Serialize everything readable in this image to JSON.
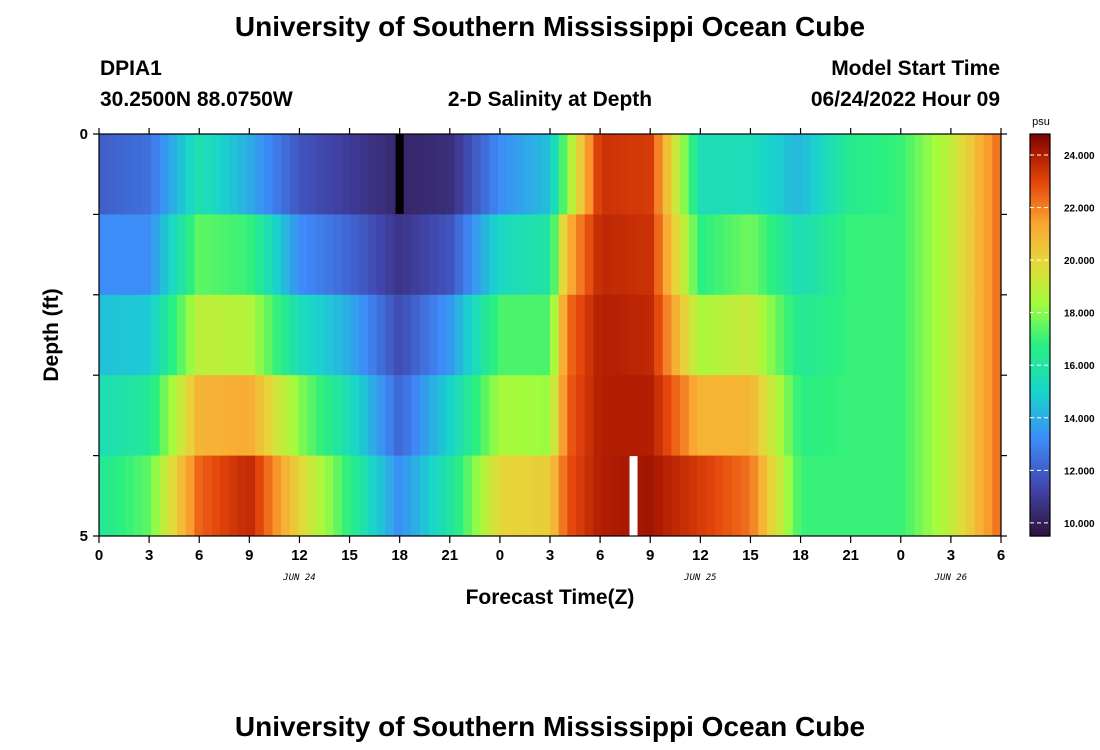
{
  "header": {
    "title": "University of Southern Mississippi Ocean Cube",
    "station_id": "DPIA1",
    "station_coords": "30.2500N  88.0750W",
    "plot_title": "2-D Salinity at Depth",
    "start_label": "Model Start Time",
    "start_value": "06/24/2022 Hour 09"
  },
  "footer": {
    "title": "University of Southern Mississippi Ocean Cube"
  },
  "chart_data": {
    "type": "heatmap",
    "title": "2-D Salinity at Depth",
    "xlabel": "Forecast Time(Z)",
    "ylabel": "Depth (ft)",
    "x_start_hour": 0,
    "x_end_hour": 54,
    "x_tick_hours": [
      0,
      3,
      6,
      9,
      12,
      15,
      18,
      21,
      24,
      27,
      30,
      33,
      36,
      39,
      42,
      45,
      48,
      51,
      54
    ],
    "x_tick_labels": [
      "0",
      "3",
      "6",
      "9",
      "12",
      "15",
      "18",
      "21",
      "0",
      "3",
      "6",
      "9",
      "12",
      "15",
      "18",
      "21",
      "0",
      "3",
      "6"
    ],
    "date_labels": [
      {
        "hour": 12,
        "label": "JUN 24"
      },
      {
        "hour": 36,
        "label": "JUN 25"
      },
      {
        "hour": 51,
        "label": "JUN 26"
      }
    ],
    "ylim": [
      0,
      5
    ],
    "y_tick_labels": [
      "0",
      "5"
    ],
    "depth_bands": 5,
    "row_keys_hours": [
      0,
      3,
      6,
      9,
      12,
      15,
      18,
      21,
      24,
      27,
      28,
      30,
      33,
      36,
      39,
      42,
      45,
      48,
      51,
      54
    ],
    "salinity_rows": [
      [
        11.5,
        12.5,
        14.5,
        12,
        11,
        10.5,
        10,
        10,
        12.5,
        14,
        16,
        23.5,
        23,
        15,
        14,
        13.5,
        16,
        17,
        19,
        22.5
      ],
      [
        12.5,
        12.5,
        17,
        16,
        12.5,
        11.5,
        10.5,
        11,
        14,
        15,
        20,
        23.5,
        23.5,
        16,
        17,
        15,
        17,
        17,
        19,
        22.5
      ],
      [
        14,
        14,
        18,
        18,
        14,
        13,
        11,
        12.5,
        16.5,
        17,
        22,
        24,
        23.5,
        17.5,
        18.5,
        16,
        17,
        17,
        19,
        22.5
      ],
      [
        15,
        15.5,
        20,
        19.5,
        17,
        15,
        12,
        14.5,
        18,
        17.5,
        22.5,
        24,
        24,
        19.5,
        20,
        16.5,
        17,
        17,
        19,
        22.5
      ],
      [
        16,
        17,
        22,
        23,
        19,
        16,
        12.5,
        15.5,
        19,
        19,
        22.5,
        24,
        24,
        22.5,
        22,
        17,
        17,
        17,
        19,
        22.5
      ],
      [
        16.5,
        18,
        23,
        24.5,
        21,
        17.5,
        14,
        16.5,
        21,
        21.5,
        23,
        24,
        24.5,
        24,
        22.5,
        17,
        17,
        17,
        19,
        22.5
      ]
    ],
    "markers": [
      {
        "hour": 18,
        "depth_band": 0,
        "color": "#000000"
      },
      {
        "hour": 32,
        "depth_band": 4,
        "color": "#ffffff"
      }
    ],
    "colorbar": {
      "unit": "psu",
      "min": 9.5,
      "max": 24.8,
      "tick_values": [
        10,
        12,
        14,
        16,
        18,
        20,
        22,
        24
      ],
      "tick_labels": [
        "10.000",
        "12.000",
        "14.000",
        "16.000",
        "18.000",
        "20.000",
        "22.000",
        "24.000"
      ],
      "colormap": "turbo"
    }
  }
}
